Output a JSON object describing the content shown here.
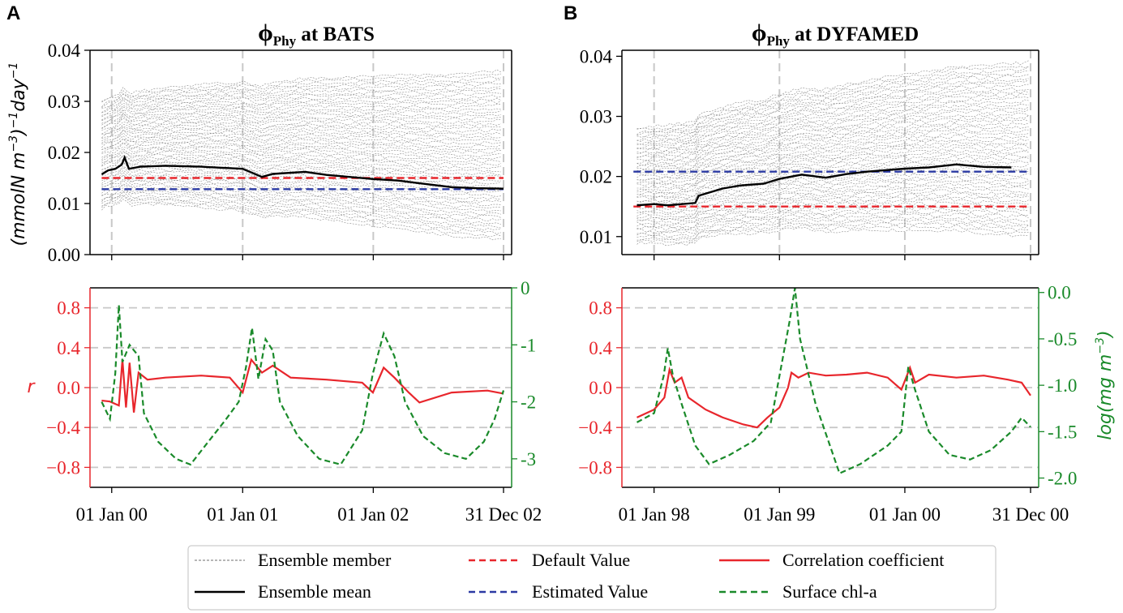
{
  "panel_labels": [
    "A",
    "B"
  ],
  "titles": {
    "A": {
      "symbol": "ϕ",
      "sub": "Phy",
      "rest": " at BATS"
    },
    "B": {
      "symbol": "ϕ",
      "sub": "Phy",
      "rest": " at DYFAMED"
    }
  },
  "colors": {
    "default": "#e8262c",
    "estimated": "#2b3aa3",
    "corr": "#e8262c",
    "chl": "#1a8a2a",
    "ensemble": "#8a8a8a",
    "mean": "#000000",
    "grid": "#c8c8c8"
  },
  "legend": {
    "items": [
      {
        "label": "Ensemble member",
        "style": "ensemble"
      },
      {
        "label": "Default Value",
        "style": "default"
      },
      {
        "label": "Correlation coefficient",
        "style": "corr"
      },
      {
        "label": "Ensemble mean",
        "style": "mean"
      },
      {
        "label": "Estimated Value",
        "style": "estimated"
      },
      {
        "label": "Surface chl-a",
        "style": "chl"
      }
    ]
  },
  "chart_data": [
    {
      "id": "A-top",
      "type": "line",
      "title": "ϕPhy at BATS",
      "ylabel_parts": [
        "(mmolN m",
        "−3",
        ")",
        "−1",
        "day",
        "−1"
      ],
      "ylim": [
        0.0,
        0.04
      ],
      "yticks": [
        0.0,
        0.01,
        0.02,
        0.03,
        0.04
      ],
      "ytick_labels": [
        "0.00",
        "0.01",
        "0.02",
        "0.03",
        "0.04"
      ],
      "x_range_days": [
        -38,
        1095
      ],
      "x_major_days": [
        0,
        366,
        731,
        1095
      ],
      "default_value": 0.015,
      "estimated_value": 0.0128,
      "ensemble": {
        "count": 55,
        "start_spread": [
          0.009,
          0.03
        ],
        "end_spread": [
          0.003,
          0.036
        ]
      },
      "mean_series": [
        {
          "x": -28,
          "y": 0.0157
        },
        {
          "x": -10,
          "y": 0.0165
        },
        {
          "x": 10,
          "y": 0.0168
        },
        {
          "x": 28,
          "y": 0.0176
        },
        {
          "x": 36,
          "y": 0.019
        },
        {
          "x": 48,
          "y": 0.0168
        },
        {
          "x": 80,
          "y": 0.0172
        },
        {
          "x": 150,
          "y": 0.0174
        },
        {
          "x": 250,
          "y": 0.0172
        },
        {
          "x": 366,
          "y": 0.0168
        },
        {
          "x": 420,
          "y": 0.0152
        },
        {
          "x": 450,
          "y": 0.0158
        },
        {
          "x": 540,
          "y": 0.0162
        },
        {
          "x": 600,
          "y": 0.0156
        },
        {
          "x": 731,
          "y": 0.0148
        },
        {
          "x": 800,
          "y": 0.0145
        },
        {
          "x": 880,
          "y": 0.0138
        },
        {
          "x": 950,
          "y": 0.0132
        },
        {
          "x": 1020,
          "y": 0.013
        },
        {
          "x": 1095,
          "y": 0.0129
        }
      ]
    },
    {
      "id": "B-top",
      "type": "line",
      "title": "ϕPhy at DYFAMED",
      "ylim": [
        0.007,
        0.041
      ],
      "yticks": [
        0.01,
        0.02,
        0.03,
        0.04
      ],
      "ytick_labels": [
        "0.01",
        "0.02",
        "0.03",
        "0.04"
      ],
      "x_range_days": [
        -70,
        1096
      ],
      "x_major_days": [
        0,
        365,
        730,
        1096
      ],
      "default_value": 0.015,
      "estimated_value": 0.0208,
      "ensemble": {
        "count": 55,
        "start_spread": [
          0.009,
          0.028
        ],
        "end_spread": [
          0.01,
          0.039
        ]
      },
      "mean_series": [
        {
          "x": -50,
          "y": 0.0152
        },
        {
          "x": 0,
          "y": 0.0154
        },
        {
          "x": 40,
          "y": 0.0152
        },
        {
          "x": 120,
          "y": 0.0156
        },
        {
          "x": 130,
          "y": 0.0168
        },
        {
          "x": 200,
          "y": 0.018
        },
        {
          "x": 250,
          "y": 0.0185
        },
        {
          "x": 320,
          "y": 0.0188
        },
        {
          "x": 365,
          "y": 0.0196
        },
        {
          "x": 430,
          "y": 0.0203
        },
        {
          "x": 500,
          "y": 0.0198
        },
        {
          "x": 560,
          "y": 0.0204
        },
        {
          "x": 620,
          "y": 0.0208
        },
        {
          "x": 730,
          "y": 0.0213
        },
        {
          "x": 800,
          "y": 0.0215
        },
        {
          "x": 880,
          "y": 0.022
        },
        {
          "x": 960,
          "y": 0.0216
        },
        {
          "x": 1040,
          "y": 0.0215
        }
      ]
    },
    {
      "id": "A-bottom",
      "type": "line",
      "ylabel": "r",
      "ylim": [
        -1.0,
        1.0
      ],
      "yticks": [
        -0.8,
        -0.4,
        0.0,
        0.4,
        0.8
      ],
      "ytick_labels": [
        "−0.8",
        "−0.4",
        "0.0",
        "0.4",
        "0.8"
      ],
      "y2lim": [
        -3.5,
        0.0
      ],
      "y2ticks": [
        -3,
        -2,
        -1,
        0
      ],
      "y2tick_labels": [
        "-3",
        "-2",
        "-1",
        "0"
      ],
      "x_range_days": [
        -38,
        1095
      ],
      "x_major_days": [
        0,
        366,
        731,
        1095
      ],
      "xtick_labels": [
        "01 Jan 00",
        "01 Jan 01",
        "01 Jan 02",
        "31 Dec 02"
      ],
      "series": [
        {
          "name": "Correlation coefficient",
          "axis": "left",
          "points": [
            {
              "x": -28,
              "y": -0.13
            },
            {
              "x": -5,
              "y": -0.14
            },
            {
              "x": 20,
              "y": -0.18
            },
            {
              "x": 30,
              "y": 0.28
            },
            {
              "x": 40,
              "y": -0.2
            },
            {
              "x": 50,
              "y": 0.25
            },
            {
              "x": 62,
              "y": -0.25
            },
            {
              "x": 75,
              "y": 0.15
            },
            {
              "x": 100,
              "y": 0.08
            },
            {
              "x": 150,
              "y": 0.1
            },
            {
              "x": 250,
              "y": 0.12
            },
            {
              "x": 330,
              "y": 0.1
            },
            {
              "x": 366,
              "y": -0.05
            },
            {
              "x": 390,
              "y": 0.28
            },
            {
              "x": 420,
              "y": 0.15
            },
            {
              "x": 450,
              "y": 0.22
            },
            {
              "x": 500,
              "y": 0.1
            },
            {
              "x": 600,
              "y": 0.08
            },
            {
              "x": 700,
              "y": 0.05
            },
            {
              "x": 730,
              "y": -0.05
            },
            {
              "x": 760,
              "y": 0.2
            },
            {
              "x": 790,
              "y": 0.1
            },
            {
              "x": 830,
              "y": -0.05
            },
            {
              "x": 860,
              "y": -0.15
            },
            {
              "x": 950,
              "y": -0.05
            },
            {
              "x": 1050,
              "y": -0.03
            },
            {
              "x": 1095,
              "y": -0.06
            }
          ]
        },
        {
          "name": "Surface chl-a",
          "axis": "right",
          "points": [
            {
              "x": -28,
              "y": -2.0
            },
            {
              "x": -5,
              "y": -2.3
            },
            {
              "x": 10,
              "y": -1.5
            },
            {
              "x": 20,
              "y": -0.3
            },
            {
              "x": 30,
              "y": -1.3
            },
            {
              "x": 50,
              "y": -1.0
            },
            {
              "x": 75,
              "y": -1.2
            },
            {
              "x": 90,
              "y": -2.2
            },
            {
              "x": 130,
              "y": -2.7
            },
            {
              "x": 180,
              "y": -3.0
            },
            {
              "x": 220,
              "y": -3.1
            },
            {
              "x": 270,
              "y": -2.7
            },
            {
              "x": 320,
              "y": -2.3
            },
            {
              "x": 355,
              "y": -2.0
            },
            {
              "x": 375,
              "y": -1.4
            },
            {
              "x": 392,
              "y": -0.7
            },
            {
              "x": 410,
              "y": -1.6
            },
            {
              "x": 430,
              "y": -0.9
            },
            {
              "x": 450,
              "y": -1.1
            },
            {
              "x": 470,
              "y": -2.0
            },
            {
              "x": 520,
              "y": -2.6
            },
            {
              "x": 580,
              "y": -3.0
            },
            {
              "x": 640,
              "y": -3.1
            },
            {
              "x": 700,
              "y": -2.5
            },
            {
              "x": 730,
              "y": -1.5
            },
            {
              "x": 760,
              "y": -0.8
            },
            {
              "x": 790,
              "y": -1.2
            },
            {
              "x": 820,
              "y": -2.0
            },
            {
              "x": 870,
              "y": -2.6
            },
            {
              "x": 930,
              "y": -2.9
            },
            {
              "x": 990,
              "y": -3.0
            },
            {
              "x": 1040,
              "y": -2.7
            },
            {
              "x": 1070,
              "y": -2.3
            },
            {
              "x": 1095,
              "y": -1.8
            }
          ]
        }
      ]
    },
    {
      "id": "B-bottom",
      "type": "line",
      "y2label_parts": [
        "log(mg m",
        "−3",
        ")"
      ],
      "ylim": [
        -1.0,
        1.0
      ],
      "yticks": [
        -0.8,
        -0.4,
        0.0,
        0.4,
        0.8
      ],
      "ytick_labels": [
        "−0.8",
        "−0.4",
        "0.0",
        "0.4",
        "0.8"
      ],
      "y2lim": [
        -2.1,
        0.05
      ],
      "y2ticks": [
        -2.0,
        -1.5,
        -1.0,
        -0.5,
        0.0
      ],
      "y2tick_labels": [
        "-2.0",
        "-1.5",
        "-1.0",
        "-0.5",
        "0.0"
      ],
      "x_range_days": [
        -70,
        1096
      ],
      "x_major_days": [
        0,
        365,
        730,
        1096
      ],
      "xtick_labels": [
        "01 Jan 98",
        "01 Jan 99",
        "01 Jan 00",
        "31 Dec 00"
      ],
      "series": [
        {
          "name": "Correlation coefficient",
          "axis": "left",
          "points": [
            {
              "x": -50,
              "y": -0.3
            },
            {
              "x": 0,
              "y": -0.22
            },
            {
              "x": 30,
              "y": -0.1
            },
            {
              "x": 45,
              "y": 0.18
            },
            {
              "x": 60,
              "y": 0.05
            },
            {
              "x": 80,
              "y": 0.1
            },
            {
              "x": 100,
              "y": -0.1
            },
            {
              "x": 150,
              "y": -0.22
            },
            {
              "x": 200,
              "y": -0.3
            },
            {
              "x": 260,
              "y": -0.37
            },
            {
              "x": 300,
              "y": -0.4
            },
            {
              "x": 330,
              "y": -0.3
            },
            {
              "x": 365,
              "y": -0.2
            },
            {
              "x": 390,
              "y": 0.0
            },
            {
              "x": 400,
              "y": 0.15
            },
            {
              "x": 420,
              "y": 0.1
            },
            {
              "x": 450,
              "y": 0.15
            },
            {
              "x": 500,
              "y": 0.12
            },
            {
              "x": 560,
              "y": 0.13
            },
            {
              "x": 620,
              "y": 0.15
            },
            {
              "x": 680,
              "y": 0.1
            },
            {
              "x": 720,
              "y": -0.02
            },
            {
              "x": 745,
              "y": 0.2
            },
            {
              "x": 760,
              "y": 0.05
            },
            {
              "x": 800,
              "y": 0.13
            },
            {
              "x": 880,
              "y": 0.1
            },
            {
              "x": 960,
              "y": 0.12
            },
            {
              "x": 1030,
              "y": 0.08
            },
            {
              "x": 1070,
              "y": 0.05
            },
            {
              "x": 1096,
              "y": -0.08
            }
          ]
        },
        {
          "name": "Surface chl-a",
          "axis": "right",
          "points": [
            {
              "x": -50,
              "y": -1.4
            },
            {
              "x": 0,
              "y": -1.3
            },
            {
              "x": 28,
              "y": -0.9
            },
            {
              "x": 40,
              "y": -0.6
            },
            {
              "x": 55,
              "y": -0.9
            },
            {
              "x": 80,
              "y": -1.2
            },
            {
              "x": 120,
              "y": -1.65
            },
            {
              "x": 160,
              "y": -1.85
            },
            {
              "x": 220,
              "y": -1.75
            },
            {
              "x": 290,
              "y": -1.6
            },
            {
              "x": 340,
              "y": -1.4
            },
            {
              "x": 370,
              "y": -0.8
            },
            {
              "x": 395,
              "y": -0.3
            },
            {
              "x": 410,
              "y": 0.05
            },
            {
              "x": 425,
              "y": -0.5
            },
            {
              "x": 470,
              "y": -1.2
            },
            {
              "x": 540,
              "y": -1.95
            },
            {
              "x": 600,
              "y": -1.85
            },
            {
              "x": 680,
              "y": -1.65
            },
            {
              "x": 720,
              "y": -1.5
            },
            {
              "x": 740,
              "y": -0.8
            },
            {
              "x": 760,
              "y": -1.05
            },
            {
              "x": 800,
              "y": -1.5
            },
            {
              "x": 860,
              "y": -1.75
            },
            {
              "x": 920,
              "y": -1.8
            },
            {
              "x": 980,
              "y": -1.7
            },
            {
              "x": 1040,
              "y": -1.5
            },
            {
              "x": 1070,
              "y": -1.35
            },
            {
              "x": 1096,
              "y": -1.45
            }
          ]
        }
      ]
    }
  ]
}
